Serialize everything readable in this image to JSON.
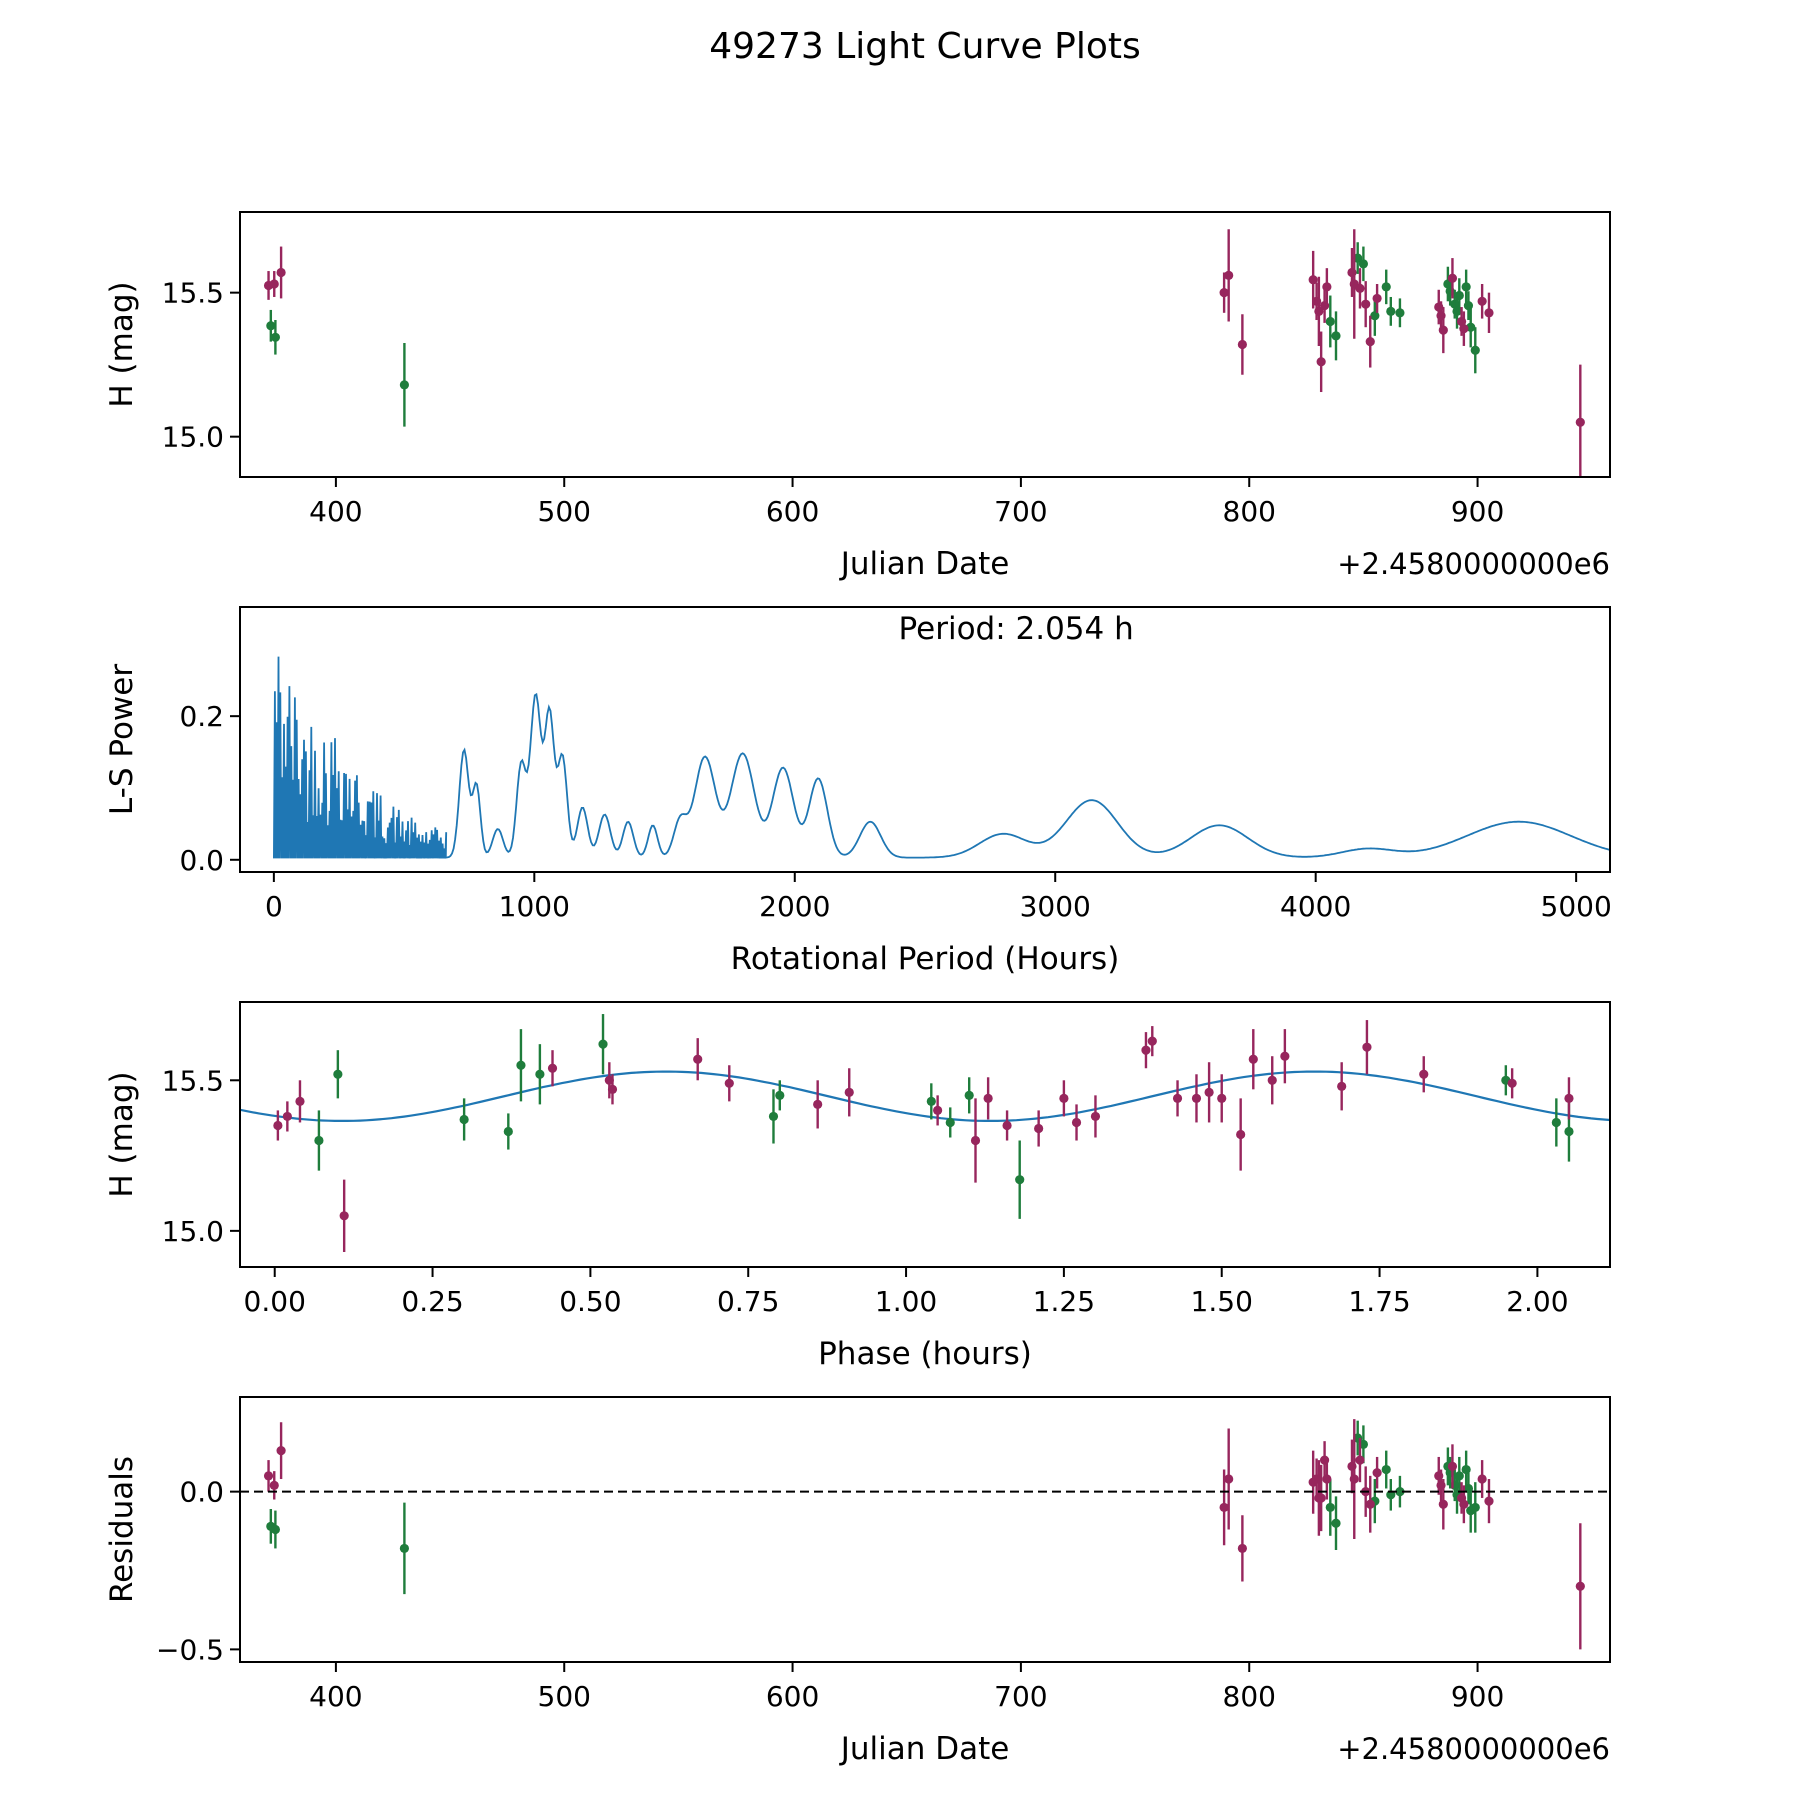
{
  "figure": {
    "title": "49273 Light Curve Plots"
  },
  "colors": {
    "green": "#1f7d3c",
    "purple": "#97265d",
    "model_line": "#1f77b4",
    "axis": "#000000"
  },
  "chart_data": [
    {
      "name": "light-curve-panel",
      "type": "errorbar-scatter",
      "xlabel": "Julian Date",
      "ylabel": "H (mag)",
      "x_offset_text": "+2.4580000000e6",
      "xlim": [
        358,
        958
      ],
      "ylim": [
        14.86,
        15.78
      ],
      "xticks": [
        400,
        500,
        600,
        700,
        800,
        900
      ],
      "xtick_labels": [
        "400",
        "500",
        "600",
        "700",
        "800",
        "900"
      ],
      "yticks": [
        15.0,
        15.5
      ],
      "ytick_labels": [
        "15.0",
        "15.5"
      ],
      "series": [
        {
          "name": "band-green",
          "color": "green",
          "points": [
            [
              371.5,
              15.385,
              0.055
            ],
            [
              373.5,
              15.345,
              0.06
            ],
            [
              430,
              15.18,
              0.145
            ],
            [
              835.5,
              15.4,
              0.09
            ],
            [
              838,
              15.35,
              0.085
            ],
            [
              847.5,
              15.62,
              0.055
            ],
            [
              850,
              15.6,
              0.06
            ],
            [
              855,
              15.42,
              0.07
            ],
            [
              860,
              15.52,
              0.06
            ],
            [
              862,
              15.435,
              0.05
            ],
            [
              866,
              15.43,
              0.05
            ],
            [
              887,
              15.53,
              0.06
            ],
            [
              888,
              15.505,
              0.05
            ],
            [
              890,
              15.46,
              0.05
            ],
            [
              891,
              15.435,
              0.06
            ],
            [
              892,
              15.49,
              0.06
            ],
            [
              895,
              15.52,
              0.06
            ],
            [
              896,
              15.455,
              0.05
            ],
            [
              897,
              15.38,
              0.07
            ],
            [
              899,
              15.3,
              0.08
            ]
          ]
        },
        {
          "name": "band-purple",
          "color": "purple",
          "points": [
            [
              370.5,
              15.525,
              0.05
            ],
            [
              373,
              15.53,
              0.045
            ],
            [
              376,
              15.57,
              0.09
            ],
            [
              789,
              15.5,
              0.07
            ],
            [
              791,
              15.56,
              0.16
            ],
            [
              797,
              15.32,
              0.105
            ],
            [
              828,
              15.545,
              0.1
            ],
            [
              829.5,
              15.47,
              0.065
            ],
            [
              830.5,
              15.435,
              0.12
            ],
            [
              831.5,
              15.26,
              0.105
            ],
            [
              833,
              15.455,
              0.06
            ],
            [
              834,
              15.52,
              0.065
            ],
            [
              845,
              15.57,
              0.085
            ],
            [
              846,
              15.53,
              0.19
            ],
            [
              848.5,
              15.515,
              0.07
            ],
            [
              851,
              15.46,
              0.08
            ],
            [
              853,
              15.33,
              0.09
            ],
            [
              856,
              15.48,
              0.05
            ],
            [
              883,
              15.45,
              0.06
            ],
            [
              884,
              15.42,
              0.05
            ],
            [
              885,
              15.37,
              0.08
            ],
            [
              889,
              15.55,
              0.07
            ],
            [
              893,
              15.4,
              0.05
            ],
            [
              894,
              15.375,
              0.06
            ],
            [
              902,
              15.47,
              0.06
            ],
            [
              905,
              15.43,
              0.07
            ],
            [
              945,
              15.05,
              0.2
            ]
          ]
        }
      ]
    },
    {
      "name": "periodogram-panel",
      "type": "periodogram",
      "xlabel": "Rotational Period (Hours)",
      "ylabel": "L-S Power",
      "xlim": [
        -130,
        5130
      ],
      "ylim": [
        -0.017,
        0.352
      ],
      "xticks": [
        0,
        1000,
        2000,
        3000,
        4000,
        5000
      ],
      "xtick_labels": [
        "0",
        "1000",
        "2000",
        "3000",
        "4000",
        "5000"
      ],
      "yticks": [
        0.0,
        0.2
      ],
      "ytick_labels": [
        "0.0",
        "0.2"
      ],
      "annotation": {
        "text": "Period: 2.054 h",
        "x": 2850,
        "dy": 32
      },
      "line_color": "model_line",
      "noise_region": {
        "x_start": 0,
        "x_end": 660,
        "tooth_step": 7,
        "envelope": [
          [
            0,
            0.335
          ],
          [
            25,
            0.305
          ],
          [
            55,
            0.27
          ],
          [
            90,
            0.235
          ],
          [
            130,
            0.205
          ],
          [
            165,
            0.225
          ],
          [
            205,
            0.175
          ],
          [
            245,
            0.21
          ],
          [
            285,
            0.155
          ],
          [
            330,
            0.12
          ],
          [
            380,
            0.1
          ],
          [
            440,
            0.085
          ],
          [
            500,
            0.065
          ],
          [
            560,
            0.05
          ],
          [
            620,
            0.045
          ],
          [
            660,
            0.05
          ]
        ]
      },
      "peaks": [
        [
          730,
          0.15,
          18
        ],
        [
          778,
          0.1,
          15
        ],
        [
          860,
          0.04,
          20
        ],
        [
          950,
          0.13,
          18
        ],
        [
          1005,
          0.225,
          20
        ],
        [
          1058,
          0.2,
          18
        ],
        [
          1108,
          0.14,
          18
        ],
        [
          1185,
          0.07,
          20
        ],
        [
          1270,
          0.06,
          22
        ],
        [
          1360,
          0.05,
          20
        ],
        [
          1455,
          0.045,
          18
        ],
        [
          1560,
          0.05,
          25
        ],
        [
          1655,
          0.14,
          40
        ],
        [
          1800,
          0.145,
          45
        ],
        [
          1955,
          0.125,
          40
        ],
        [
          2090,
          0.11,
          35
        ],
        [
          2290,
          0.05,
          40
        ],
        [
          2800,
          0.033,
          90
        ],
        [
          3140,
          0.08,
          100
        ],
        [
          3630,
          0.045,
          110
        ],
        [
          4200,
          0.012,
          100
        ],
        [
          4780,
          0.05,
          200
        ]
      ]
    },
    {
      "name": "phase-panel",
      "type": "errorbar-scatter",
      "xlabel": "Phase (hours)",
      "ylabel": "H (mag)",
      "xlim": [
        -0.055,
        2.115
      ],
      "ylim": [
        14.88,
        15.76
      ],
      "xticks": [
        0,
        0.25,
        0.5,
        0.75,
        1.0,
        1.25,
        1.5,
        1.75,
        2.0
      ],
      "xtick_labels": [
        "0.00",
        "0.25",
        "0.50",
        "0.75",
        "1.00",
        "1.25",
        "1.50",
        "1.75",
        "2.00"
      ],
      "yticks": [
        15.0,
        15.5
      ],
      "ytick_labels": [
        "15.0",
        "15.5"
      ],
      "model": {
        "mean": 15.447,
        "amplitude": 0.082,
        "period": 1.027,
        "x_peak": 0.62,
        "x_start": -0.055,
        "x_end": 2.115,
        "color": "model_line"
      },
      "series": [
        {
          "name": "band-green",
          "color": "green",
          "points": [
            [
              0.07,
              15.3,
              0.1
            ],
            [
              0.1,
              15.52,
              0.08
            ],
            [
              0.3,
              15.37,
              0.07
            ],
            [
              0.37,
              15.33,
              0.06
            ],
            [
              0.39,
              15.55,
              0.12
            ],
            [
              0.42,
              15.52,
              0.1
            ],
            [
              0.52,
              15.62,
              0.1
            ],
            [
              0.79,
              15.38,
              0.09
            ],
            [
              0.8,
              15.45,
              0.05
            ],
            [
              1.04,
              15.43,
              0.06
            ],
            [
              1.07,
              15.36,
              0.05
            ],
            [
              1.1,
              15.45,
              0.06
            ],
            [
              1.18,
              15.17,
              0.13
            ],
            [
              1.95,
              15.5,
              0.05
            ],
            [
              2.03,
              15.36,
              0.08
            ],
            [
              2.05,
              15.33,
              0.1
            ]
          ]
        },
        {
          "name": "band-purple",
          "color": "purple",
          "points": [
            [
              0.005,
              15.35,
              0.05
            ],
            [
              0.02,
              15.38,
              0.05
            ],
            [
              0.04,
              15.43,
              0.07
            ],
            [
              0.11,
              15.05,
              0.12
            ],
            [
              0.44,
              15.54,
              0.06
            ],
            [
              0.53,
              15.5,
              0.06
            ],
            [
              0.535,
              15.47,
              0.05
            ],
            [
              0.67,
              15.57,
              0.07
            ],
            [
              0.72,
              15.49,
              0.06
            ],
            [
              0.86,
              15.42,
              0.08
            ],
            [
              0.91,
              15.46,
              0.08
            ],
            [
              1.05,
              15.4,
              0.05
            ],
            [
              1.11,
              15.3,
              0.14
            ],
            [
              1.13,
              15.44,
              0.07
            ],
            [
              1.16,
              15.35,
              0.05
            ],
            [
              1.21,
              15.34,
              0.06
            ],
            [
              1.25,
              15.44,
              0.06
            ],
            [
              1.27,
              15.36,
              0.06
            ],
            [
              1.3,
              15.38,
              0.07
            ],
            [
              1.38,
              15.6,
              0.06
            ],
            [
              1.39,
              15.63,
              0.05
            ],
            [
              1.43,
              15.44,
              0.06
            ],
            [
              1.46,
              15.44,
              0.08
            ],
            [
              1.48,
              15.46,
              0.1
            ],
            [
              1.5,
              15.44,
              0.08
            ],
            [
              1.53,
              15.32,
              0.12
            ],
            [
              1.55,
              15.57,
              0.1
            ],
            [
              1.58,
              15.5,
              0.08
            ],
            [
              1.6,
              15.58,
              0.09
            ],
            [
              1.69,
              15.48,
              0.08
            ],
            [
              1.73,
              15.61,
              0.09
            ],
            [
              1.82,
              15.52,
              0.06
            ],
            [
              1.96,
              15.49,
              0.05
            ],
            [
              2.05,
              15.44,
              0.07
            ]
          ]
        }
      ]
    },
    {
      "name": "residuals-panel",
      "type": "errorbar-scatter",
      "xlabel": "Julian Date",
      "ylabel": "Residuals",
      "x_offset_text": "+2.4580000000e6",
      "xlim": [
        358,
        958
      ],
      "ylim": [
        -0.54,
        0.3
      ],
      "xticks": [
        400,
        500,
        600,
        700,
        800,
        900
      ],
      "xtick_labels": [
        "400",
        "500",
        "600",
        "700",
        "800",
        "900"
      ],
      "yticks": [
        -0.5,
        0.0
      ],
      "ytick_labels": [
        "−0.5",
        "0.0"
      ],
      "hline": {
        "y": 0,
        "style": "dashed"
      },
      "series": [
        {
          "name": "band-green",
          "color": "green",
          "points": [
            [
              371.5,
              -0.11,
              0.055
            ],
            [
              373.5,
              -0.12,
              0.06
            ],
            [
              430,
              -0.18,
              0.145
            ],
            [
              835.5,
              -0.05,
              0.09
            ],
            [
              838,
              -0.1,
              0.085
            ],
            [
              847.5,
              0.17,
              0.055
            ],
            [
              850,
              0.15,
              0.06
            ],
            [
              855,
              -0.03,
              0.07
            ],
            [
              860,
              0.07,
              0.06
            ],
            [
              862,
              -0.01,
              0.05
            ],
            [
              866,
              0.0,
              0.05
            ],
            [
              887,
              0.08,
              0.06
            ],
            [
              888,
              0.06,
              0.05
            ],
            [
              890,
              0.02,
              0.05
            ],
            [
              891,
              -0.01,
              0.06
            ],
            [
              892,
              0.05,
              0.06
            ],
            [
              895,
              0.07,
              0.06
            ],
            [
              896,
              0.01,
              0.05
            ],
            [
              897,
              -0.06,
              0.07
            ],
            [
              899,
              -0.05,
              0.08
            ]
          ]
        },
        {
          "name": "band-purple",
          "color": "purple",
          "points": [
            [
              370.5,
              0.05,
              0.05
            ],
            [
              373,
              0.02,
              0.045
            ],
            [
              376,
              0.13,
              0.09
            ],
            [
              789,
              -0.05,
              0.12
            ],
            [
              791,
              0.04,
              0.16
            ],
            [
              797,
              -0.18,
              0.105
            ],
            [
              828,
              0.03,
              0.1
            ],
            [
              829.5,
              0.04,
              0.065
            ],
            [
              830.5,
              -0.02,
              0.12
            ],
            [
              831.5,
              -0.02,
              0.105
            ],
            [
              833,
              0.1,
              0.06
            ],
            [
              834,
              0.04,
              0.065
            ],
            [
              845,
              0.08,
              0.085
            ],
            [
              846,
              0.04,
              0.19
            ],
            [
              848.5,
              0.1,
              0.07
            ],
            [
              851,
              0.0,
              0.08
            ],
            [
              853,
              -0.04,
              0.09
            ],
            [
              856,
              0.06,
              0.05
            ],
            [
              883,
              0.05,
              0.06
            ],
            [
              884,
              0.02,
              0.05
            ],
            [
              885,
              -0.04,
              0.08
            ],
            [
              889,
              0.08,
              0.07
            ],
            [
              893,
              -0.02,
              0.05
            ],
            [
              894,
              -0.04,
              0.06
            ],
            [
              902,
              0.04,
              0.06
            ],
            [
              905,
              -0.03,
              0.07
            ],
            [
              945,
              -0.3,
              0.2
            ]
          ]
        }
      ]
    }
  ]
}
